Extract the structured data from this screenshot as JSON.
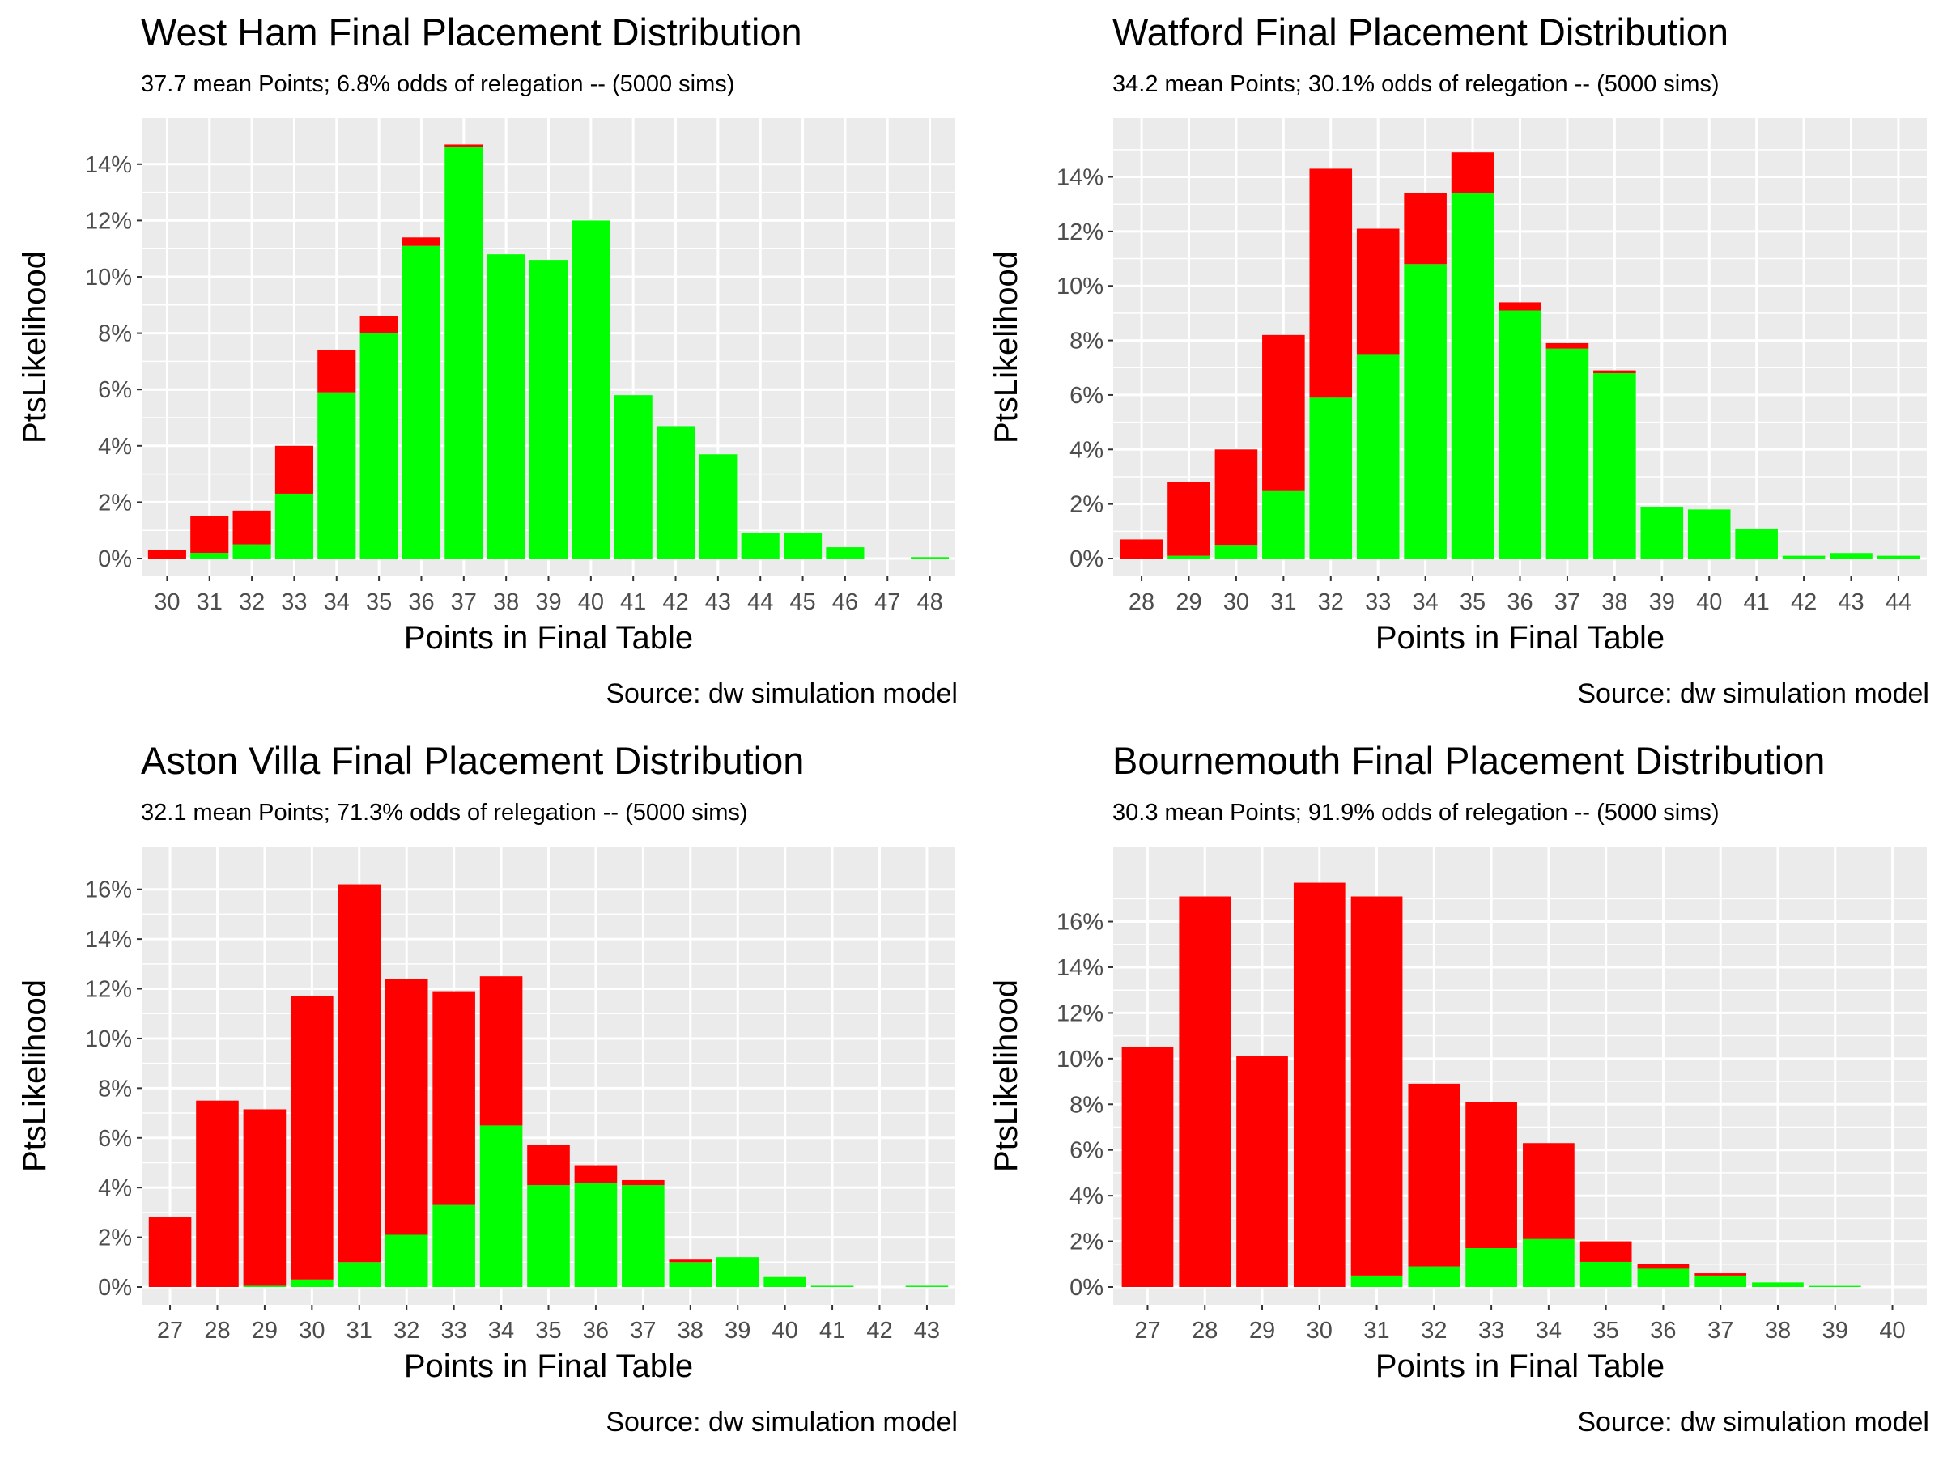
{
  "colors": {
    "relegated": "#ff0000",
    "safe": "#00ff00",
    "panel": "#ebebeb",
    "grid": "#ffffff",
    "tick_text": "#4d4d4d"
  },
  "chart_data": [
    {
      "type": "bar",
      "stacked": true,
      "title": "West Ham Final Placement Distribution",
      "subtitle": "37.7 mean Points; 6.8% odds of relegation -- (5000 sims)",
      "caption": "Source:  dw simulation model",
      "xlabel": "Points in Final Table",
      "ylabel": "PtsLikelihood",
      "categories": [
        30,
        31,
        32,
        33,
        34,
        35,
        36,
        37,
        38,
        39,
        40,
        41,
        42,
        43,
        44,
        45,
        46,
        47,
        48
      ],
      "ylim": [
        0,
        0.15
      ],
      "yticks": [
        0,
        0.02,
        0.04,
        0.06,
        0.08,
        0.1,
        0.12,
        0.14
      ],
      "ytick_labels": [
        "0%",
        "2%",
        "4%",
        "6%",
        "8%",
        "10%",
        "12%",
        "14%"
      ],
      "series": [
        {
          "color_key": "safe",
          "values": [
            0,
            0.002,
            0.005,
            0.023,
            0.059,
            0.08,
            0.111,
            0.146,
            0.108,
            0.106,
            0.12,
            0.058,
            0.047,
            0.037,
            0.009,
            0.009,
            0.004,
            0,
            0.0005
          ]
        },
        {
          "color_key": "relegated",
          "values": [
            0.003,
            0.013,
            0.012,
            0.017,
            0.015,
            0.006,
            0.003,
            0.001,
            0,
            0,
            0,
            0,
            0,
            0,
            0,
            0,
            0,
            0,
            0
          ]
        }
      ]
    },
    {
      "type": "bar",
      "stacked": true,
      "title": "Watford Final Placement Distribution",
      "subtitle": "34.2 mean Points; 30.1% odds of relegation -- (5000 sims)",
      "caption": "Source:  dw simulation model",
      "xlabel": "Points in Final Table",
      "ylabel": "PtsLikelihood",
      "categories": [
        28,
        29,
        30,
        31,
        32,
        33,
        34,
        35,
        36,
        37,
        38,
        39,
        40,
        41,
        42,
        43,
        44
      ],
      "ylim": [
        0,
        0.155
      ],
      "yticks": [
        0,
        0.02,
        0.04,
        0.06,
        0.08,
        0.1,
        0.12,
        0.14
      ],
      "ytick_labels": [
        "0%",
        "2%",
        "4%",
        "6%",
        "8%",
        "10%",
        "12%",
        "14%"
      ],
      "series": [
        {
          "color_key": "safe",
          "values": [
            0,
            0.001,
            0.005,
            0.025,
            0.059,
            0.075,
            0.108,
            0.134,
            0.091,
            0.077,
            0.068,
            0.019,
            0.018,
            0.011,
            0.001,
            0.002,
            0.001
          ]
        },
        {
          "color_key": "relegated",
          "values": [
            0.007,
            0.027,
            0.035,
            0.057,
            0.084,
            0.046,
            0.026,
            0.015,
            0.003,
            0.002,
            0.001,
            0,
            0,
            0,
            0,
            0,
            0
          ]
        }
      ]
    },
    {
      "type": "bar",
      "stacked": true,
      "title": "Aston Villa Final Placement Distribution",
      "subtitle": "32.1 mean Points; 71.3% odds of relegation -- (5000 sims)",
      "caption": "Source:  dw simulation model",
      "xlabel": "Points in Final Table",
      "ylabel": "PtsLikelihood",
      "categories": [
        27,
        28,
        29,
        30,
        31,
        32,
        33,
        34,
        35,
        36,
        37,
        38,
        39,
        40,
        41,
        42,
        43
      ],
      "ylim": [
        0,
        0.17
      ],
      "yticks": [
        0,
        0.02,
        0.04,
        0.06,
        0.08,
        0.1,
        0.12,
        0.14,
        0.16
      ],
      "ytick_labels": [
        "0%",
        "2%",
        "4%",
        "6%",
        "8%",
        "10%",
        "12%",
        "14%",
        "16%"
      ],
      "series": [
        {
          "color_key": "safe",
          "values": [
            0,
            0,
            0.0005,
            0.003,
            0.01,
            0.021,
            0.033,
            0.065,
            0.041,
            0.042,
            0.041,
            0.01,
            0.012,
            0.004,
            0.0005,
            0,
            0.0005
          ]
        },
        {
          "color_key": "relegated",
          "values": [
            0.028,
            0.075,
            0.071,
            0.114,
            0.152,
            0.103,
            0.086,
            0.06,
            0.016,
            0.007,
            0.002,
            0.001,
            0,
            0,
            0,
            0,
            0
          ]
        }
      ]
    },
    {
      "type": "bar",
      "stacked": true,
      "title": "Bournemouth Final Placement Distribution",
      "subtitle": "30.3 mean Points; 91.9% odds of relegation -- (5000 sims)",
      "caption": "Source:  dw simulation model",
      "xlabel": "Points in Final Table",
      "ylabel": "PtsLikelihood",
      "categories": [
        27,
        28,
        29,
        30,
        31,
        32,
        33,
        34,
        35,
        36,
        37,
        38,
        39,
        40
      ],
      "ylim": [
        0,
        0.185
      ],
      "yticks": [
        0,
        0.02,
        0.04,
        0.06,
        0.08,
        0.1,
        0.12,
        0.14,
        0.16
      ],
      "ytick_labels": [
        "0%",
        "2%",
        "4%",
        "6%",
        "8%",
        "10%",
        "12%",
        "14%",
        "16%"
      ],
      "series": [
        {
          "color_key": "safe",
          "values": [
            0,
            0,
            0,
            0,
            0.005,
            0.009,
            0.017,
            0.021,
            0.011,
            0.008,
            0.005,
            0.002,
            0.0005,
            0
          ]
        },
        {
          "color_key": "relegated",
          "values": [
            0.105,
            0.171,
            0.101,
            0.177,
            0.166,
            0.08,
            0.064,
            0.042,
            0.009,
            0.002,
            0.001,
            0,
            0,
            0
          ]
        }
      ]
    }
  ]
}
